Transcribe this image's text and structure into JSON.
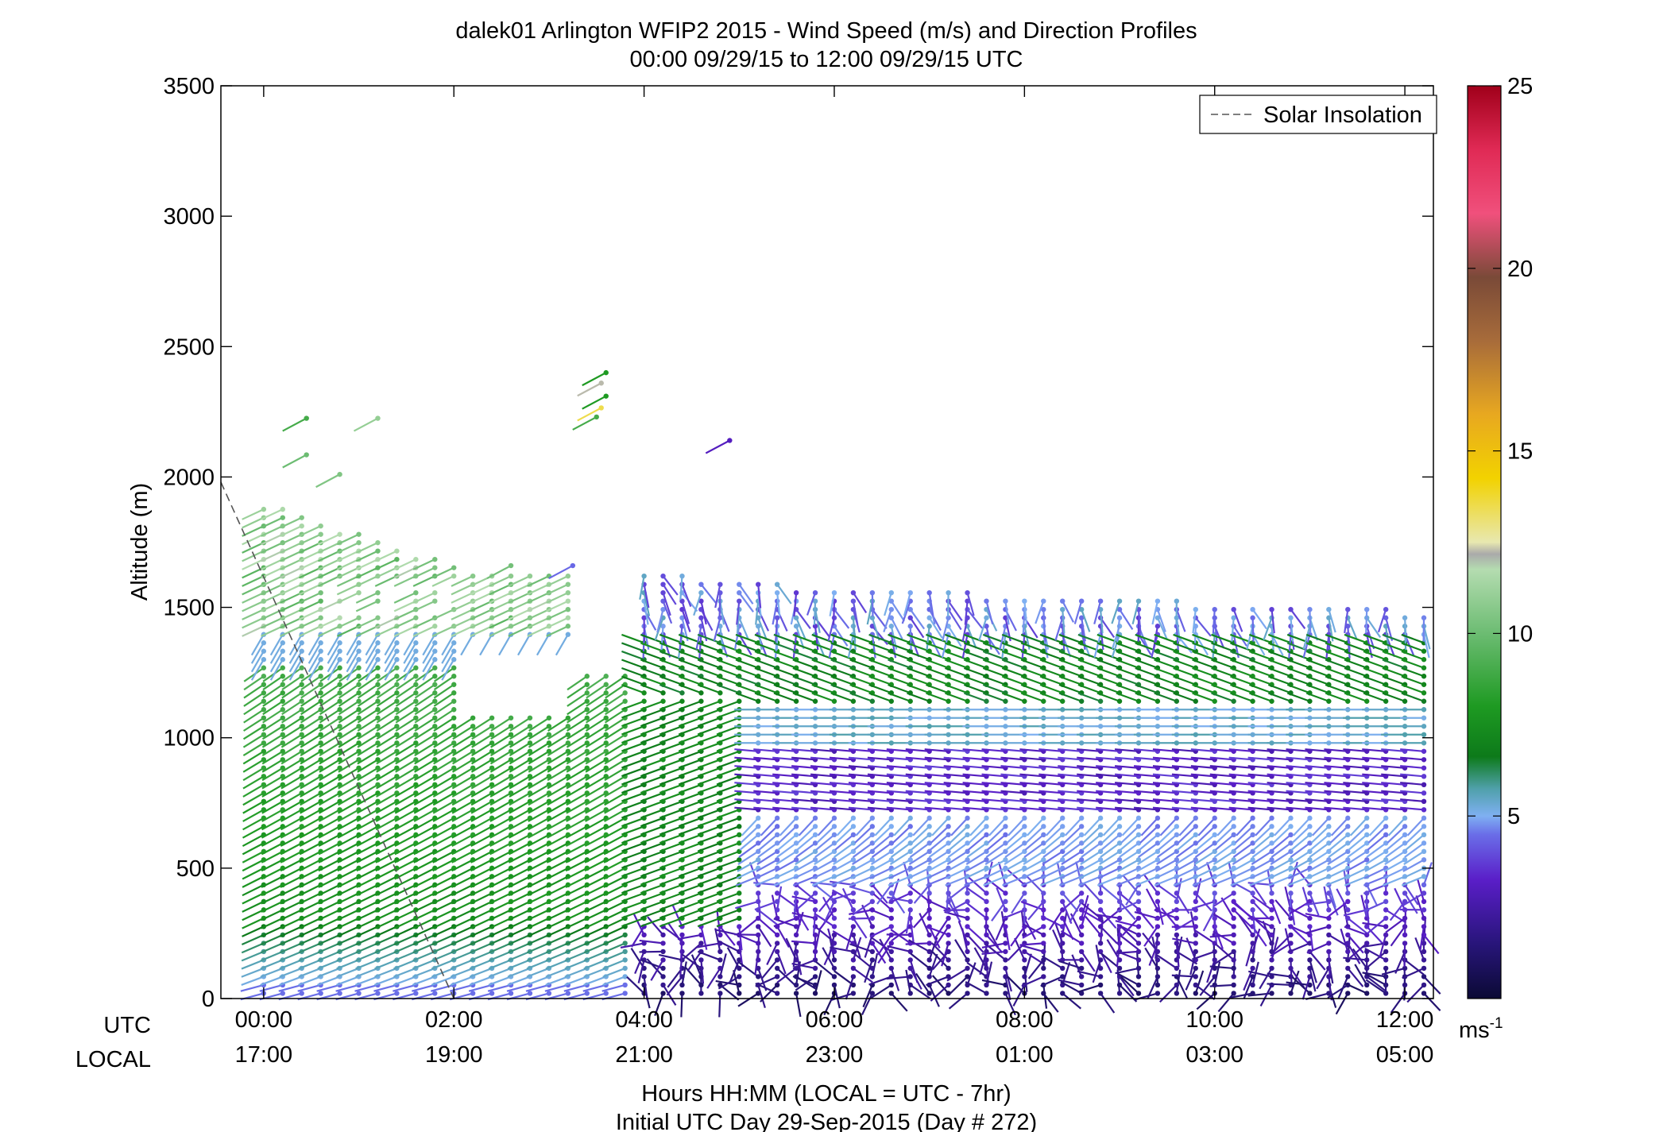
{
  "chart_data": {
    "type": "wind-barb-profile",
    "title": "dalek01 Arlington WFIP2 2015 - Wind Speed (m/s) and Direction Profiles",
    "subtitle": "00:00 09/29/15 to 12:00 09/29/15  UTC",
    "ylabel": "Altitude (m)",
    "xlabel": "Hours HH:MM  (LOCAL = UTC - 7hr)",
    "xlabel2": "Initial UTC Day 29-Sep-2015 (Day # 272)",
    "x_row_labels": [
      "UTC",
      "LOCAL"
    ],
    "ylim": [
      0,
      3500
    ],
    "xlim_hours": [
      -0.45,
      12.3
    ],
    "y_ticks": [
      0,
      500,
      1000,
      1500,
      2000,
      2500,
      3000,
      3500
    ],
    "x_ticks_utc": [
      "00:00",
      "02:00",
      "04:00",
      "06:00",
      "08:00",
      "10:00",
      "12:00"
    ],
    "x_ticks_local": [
      "17:00",
      "19:00",
      "21:00",
      "23:00",
      "01:00",
      "03:00",
      "05:00"
    ],
    "x_tick_hours": [
      0,
      2,
      4,
      6,
      8,
      10,
      12
    ],
    "legend": {
      "entries": [
        "Solar Insolation"
      ],
      "position": "top-right"
    },
    "colorbar": {
      "min": 0,
      "max": 25,
      "ticks": [
        5,
        10,
        15,
        20,
        25
      ],
      "unit_label": "ms",
      "unit_sup": "-1"
    },
    "solar_insolation_line": {
      "hours": [
        -0.45,
        2.0
      ],
      "altitude_m": [
        1980,
        0
      ]
    },
    "profile_start_hour": 0.0,
    "profile_interval_hours": 0.2
  }
}
